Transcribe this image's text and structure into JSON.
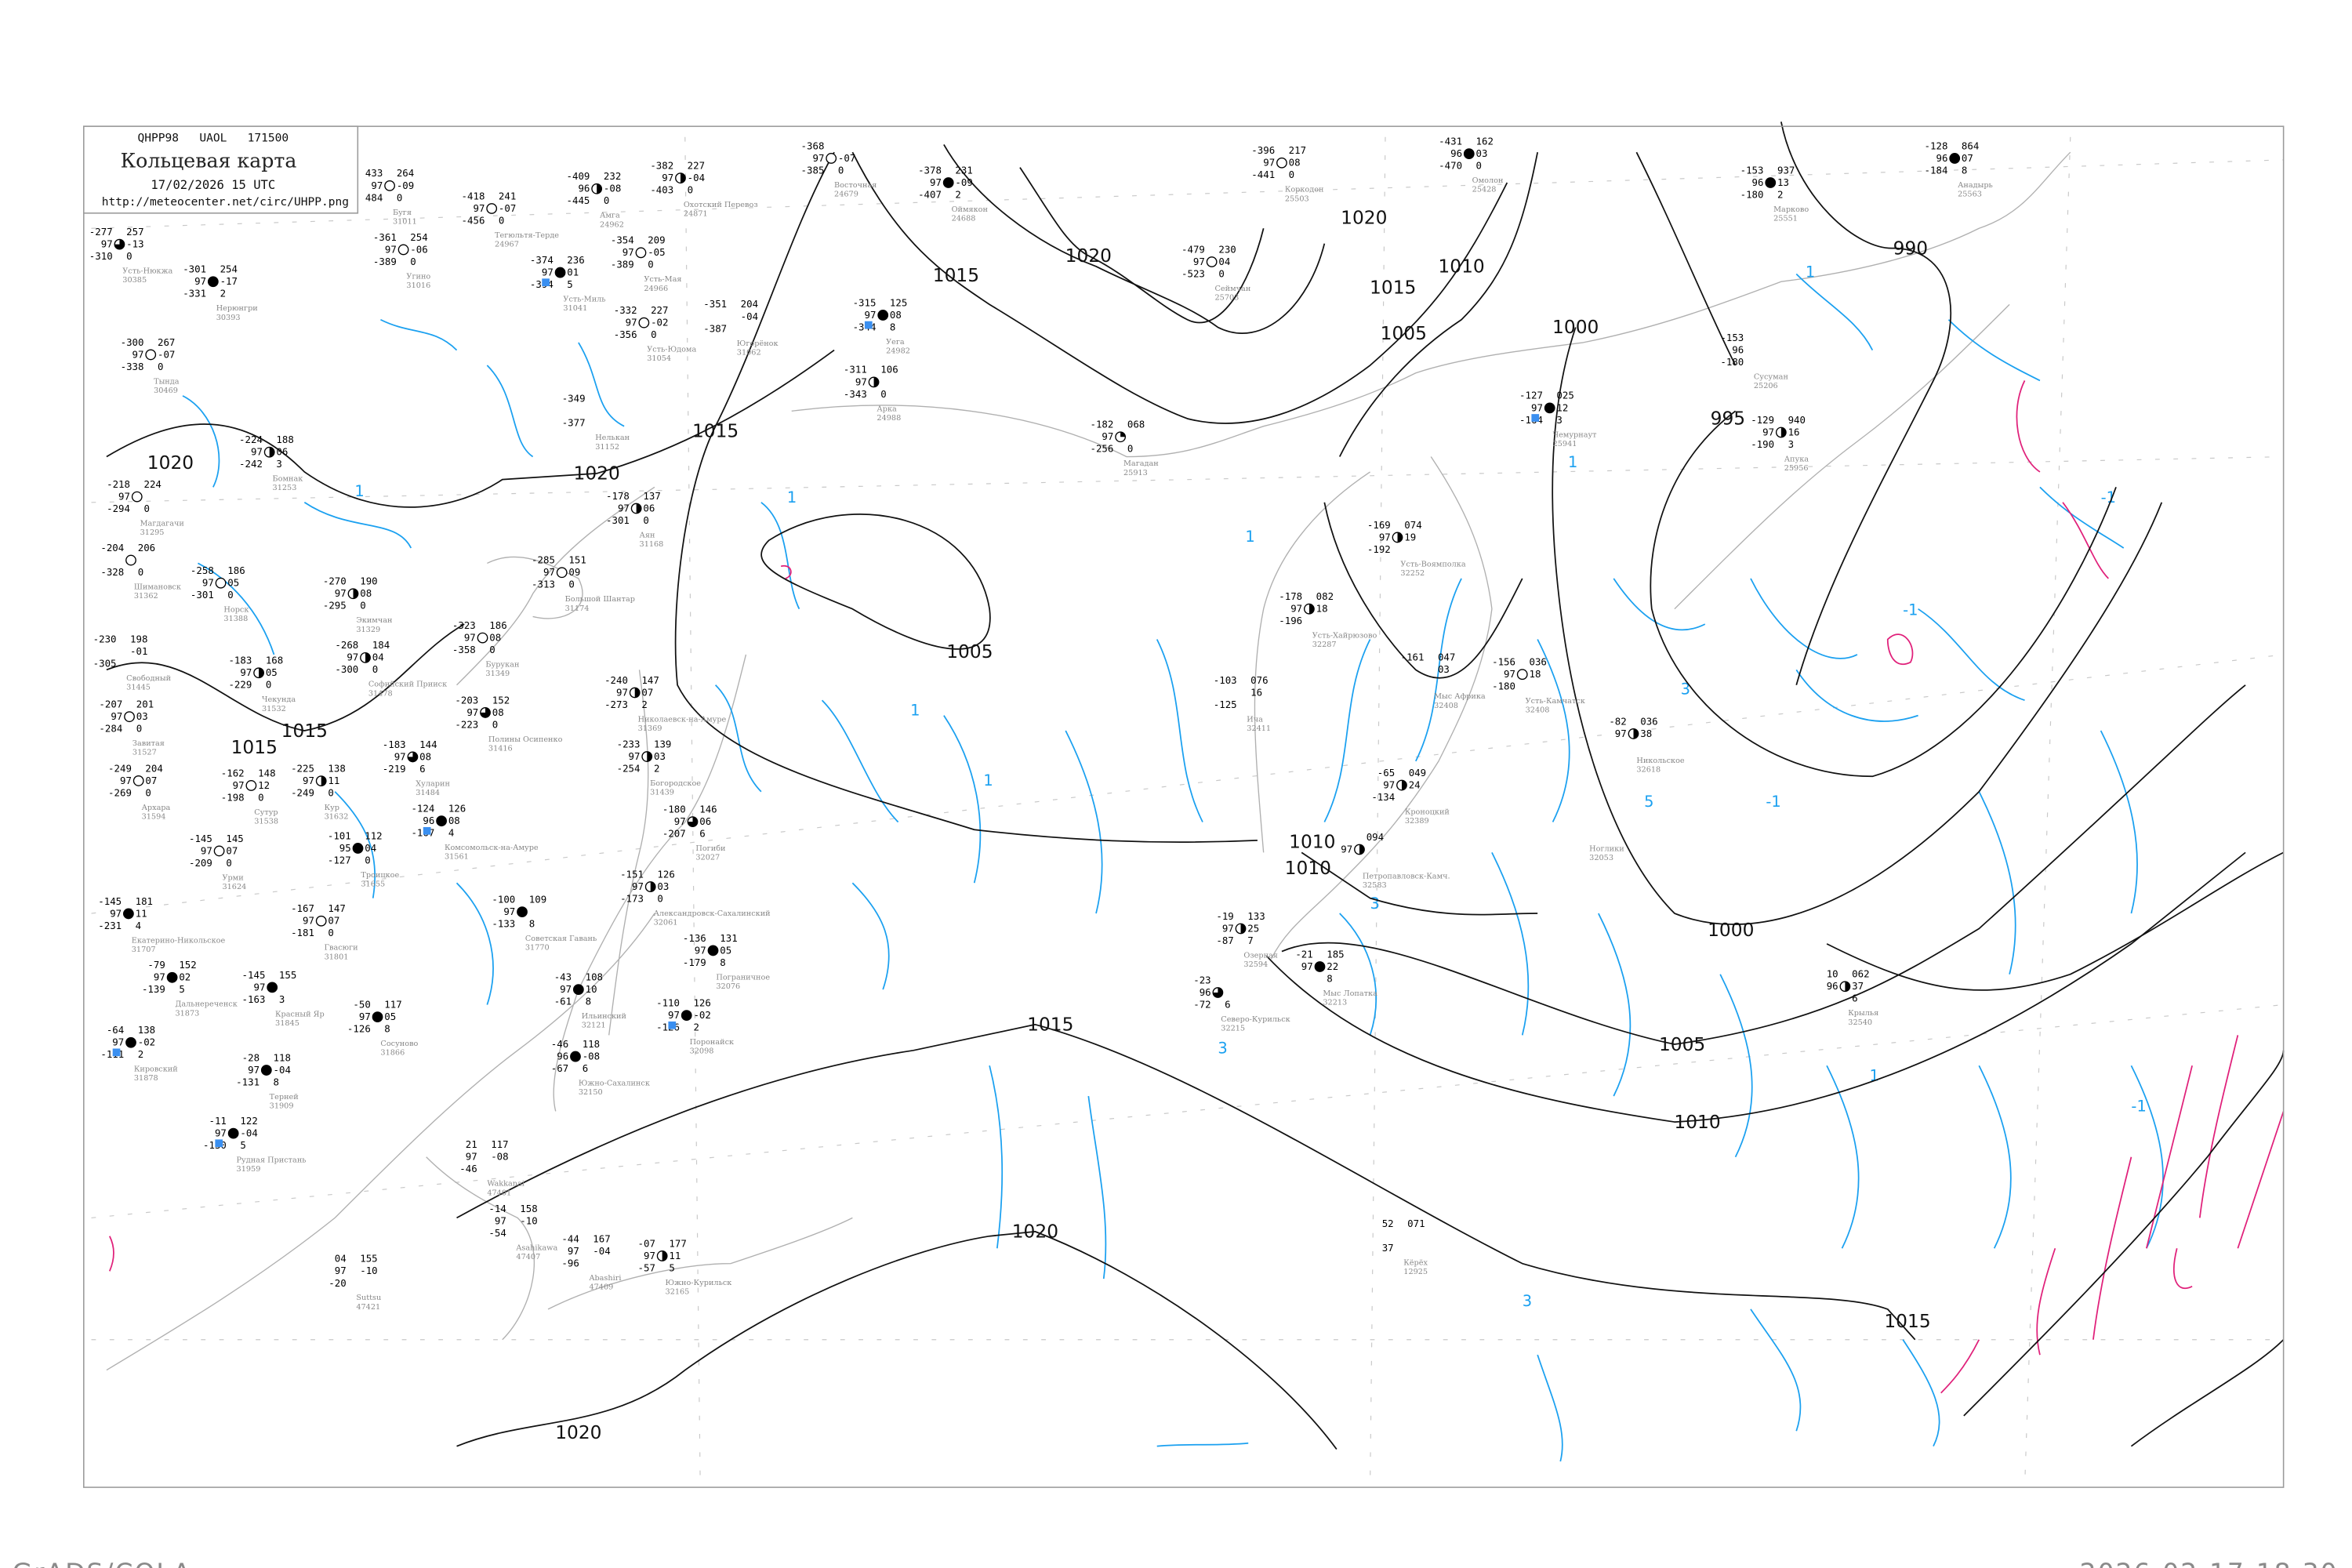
{
  "header": {
    "code": "QHPP98   UAOL   171500",
    "title": "Кольцевая карта",
    "datetime": "17/02/2026 15 UTC",
    "url": "http://meteocenter.net/circ/UHPP.png"
  },
  "footer": {
    "left": "GrADS/COLA",
    "right": "2026-02-17-18:30"
  },
  "colors": {
    "isobar": "#111111",
    "positive_tendency": "#1aa0f0",
    "negative_tendency": "#e0207a",
    "coastline": "#b0b0b0",
    "precip_marker": "#3a8ff0",
    "fog_marker": "#f5f08a"
  },
  "isobar_labels": [
    "1020",
    "1015",
    "1015",
    "1010",
    "1005",
    "1020",
    "1000",
    "995",
    "990",
    "1020",
    "1015",
    "1015",
    "1015",
    "1005",
    "1010",
    "1010",
    "1015",
    "1020",
    "1000",
    "1005",
    "1010",
    "1015",
    "1020",
    "1020"
  ],
  "tendency_labels": [
    "1",
    "1",
    "1",
    "1",
    "1",
    "-1",
    "-1",
    "-1",
    "3",
    "3",
    "3",
    "5",
    "3",
    "1",
    "1",
    "-1",
    "1"
  ],
  "stations": [
    {
      "name": "Усть-Нюкжа",
      "id": "30385",
      "left": [
        "-277",
        "97",
        "-310"
      ],
      "right": [
        "257",
        "-13",
        "0"
      ],
      "cover": 0.75
    },
    {
      "name": "Нерюнгри",
      "id": "30393",
      "left": [
        "-301",
        "97",
        "-331"
      ],
      "right": [
        "254",
        "-17",
        "2"
      ],
      "cover": 1
    },
    {
      "name": "Тында",
      "id": "30469",
      "left": [
        "-300",
        "97",
        "-338"
      ],
      "right": [
        "267",
        "-07",
        "0"
      ],
      "cover": 0
    },
    {
      "name": "Бугя",
      "id": "31011",
      "left": [
        "433",
        "97",
        "484"
      ],
      "right": [
        "264",
        "-09",
        "0"
      ],
      "cover": 0
    },
    {
      "name": "Тегюльтя-Терде",
      "id": "24967",
      "left": [
        "-418",
        "97",
        "-456"
      ],
      "right": [
        "241",
        "-07",
        "0"
      ],
      "cover": 0
    },
    {
      "name": "Амга",
      "id": "24962",
      "left": [
        "-409",
        "96",
        "-445"
      ],
      "right": [
        "232",
        "-08",
        "0"
      ],
      "cover": 0.5
    },
    {
      "name": "Охотский Перевоз",
      "id": "24871",
      "left": [
        "-382",
        "97",
        "-403"
      ],
      "right": [
        "227",
        "-04",
        "0"
      ],
      "cover": 0.5
    },
    {
      "name": "Восточная",
      "id": "24679",
      "left": [
        "-368",
        "97",
        "-385"
      ],
      "right": [
        "",
        "-07",
        "0"
      ],
      "cover": 0
    },
    {
      "name": "Угино",
      "id": "31016",
      "left": [
        "-361",
        "97",
        "-389"
      ],
      "right": [
        "254",
        "-06",
        "0"
      ],
      "cover": 0
    },
    {
      "name": "Усть-Миль",
      "id": "31041",
      "left": [
        "-374",
        "97",
        "-394"
      ],
      "right": [
        "236",
        "01",
        "5"
      ],
      "cover": 1
    },
    {
      "name": "Усть-Мая",
      "id": "24966",
      "left": [
        "-354",
        "97",
        "-389"
      ],
      "right": [
        "209",
        "-05",
        "0"
      ],
      "cover": 0
    },
    {
      "name": "Усть-Юдома",
      "id": "31054",
      "left": [
        "-332",
        "97",
        "-356"
      ],
      "right": [
        "227",
        "-02",
        "0"
      ],
      "cover": 0
    },
    {
      "name": "Югорёнок",
      "id": "31062",
      "left": [
        "-351",
        "",
        "-387"
      ],
      "right": [
        "204",
        "-04",
        ""
      ],
      "cover": -1
    },
    {
      "name": "Нелькан",
      "id": "31152",
      "left": [
        "-349",
        "",
        "-377"
      ],
      "right": [
        "",
        "",
        ""
      ],
      "cover": -1
    },
    {
      "name": "Бомнак",
      "id": "31253",
      "left": [
        "-224",
        "97",
        "-242"
      ],
      "right": [
        "188",
        "06",
        "3"
      ],
      "cover": 0.5
    },
    {
      "name": "Магдагачи",
      "id": "31295",
      "left": [
        "-218",
        "97",
        "-294"
      ],
      "right": [
        "224",
        "",
        "0"
      ],
      "cover": 0
    },
    {
      "name": "Аян",
      "id": "31168",
      "left": [
        "-178",
        "97",
        "-301"
      ],
      "right": [
        "137",
        "06",
        "0"
      ],
      "cover": 0.5
    },
    {
      "name": "Оймякон",
      "id": "24688",
      "left": [
        "-378",
        "97",
        "-407"
      ],
      "right": [
        "231",
        "-09",
        "2"
      ],
      "cover": 1
    },
    {
      "name": "Коркодон",
      "id": "25503",
      "left": [
        "-396",
        "97",
        "-441"
      ],
      "right": [
        "217",
        "08",
        "0"
      ],
      "cover": 0
    },
    {
      "name": "Омолон",
      "id": "25428",
      "left": [
        "-431",
        "96",
        "-470"
      ],
      "right": [
        "162",
        "03",
        "0"
      ],
      "cover": 1
    },
    {
      "name": "Сеймчан",
      "id": "25703",
      "left": [
        "-479",
        "97",
        "-523"
      ],
      "right": [
        "230",
        "04",
        "0"
      ],
      "cover": 0
    },
    {
      "name": "Уега",
      "id": "24982",
      "left": [
        "-315",
        "97",
        "-344"
      ],
      "right": [
        "125",
        "08",
        "8"
      ],
      "cover": 1
    },
    {
      "name": "Арка",
      "id": "24988",
      "left": [
        "-311",
        "97",
        "-343"
      ],
      "right": [
        "106",
        "",
        "0"
      ],
      "cover": 0.5
    },
    {
      "name": "Магадан",
      "id": "25913",
      "left": [
        "-182",
        "97",
        "-256"
      ],
      "right": [
        "068",
        "",
        "0"
      ],
      "cover": 0.25
    },
    {
      "name": "Чемурнаут",
      "id": "25941",
      "left": [
        "-127",
        "97",
        "-164"
      ],
      "right": [
        "025",
        "12",
        "3"
      ],
      "cover": 1
    },
    {
      "name": "Марково",
      "id": "25551",
      "left": [
        "-153",
        "96",
        "-180"
      ],
      "right": [
        "937",
        "13",
        "2"
      ],
      "cover": 1
    },
    {
      "name": "Анадырь",
      "id": "25563",
      "left": [
        "-128",
        "96",
        "-184"
      ],
      "right": [
        "864",
        "07",
        "8"
      ],
      "cover": 1
    },
    {
      "name": "Апука",
      "id": "25956",
      "left": [
        "-129",
        "97",
        "-190"
      ],
      "right": [
        "940",
        "16",
        "3"
      ],
      "cover": 0.5
    },
    {
      "name": "Усть-Воямполка",
      "id": "32252",
      "left": [
        "-169",
        "97",
        "-192"
      ],
      "right": [
        "074",
        "19",
        ""
      ],
      "cover": 0.5
    },
    {
      "name": "Усть-Хайрюзово",
      "id": "32287",
      "left": [
        "-178",
        "97",
        "-196"
      ],
      "right": [
        "082",
        "18",
        ""
      ],
      "cover": 0.5
    },
    {
      "name": "Усть-Камчатск",
      "id": "32408",
      "left": [
        "-156",
        "97",
        "-180"
      ],
      "right": [
        "036",
        "18",
        ""
      ],
      "cover": 0
    },
    {
      "name": "Никольское",
      "id": "32618",
      "left": [
        "-82",
        "97",
        ""
      ],
      "right": [
        "036",
        "38",
        ""
      ],
      "cover": 0.5
    },
    {
      "name": "Ича",
      "id": "32411",
      "left": [
        "-103",
        "",
        "-125"
      ],
      "right": [
        "076",
        "16",
        ""
      ],
      "cover": -1
    },
    {
      "name": "Озерная",
      "id": "32594",
      "left": [
        "-19",
        "97",
        "-87"
      ],
      "right": [
        "133",
        "25",
        "7"
      ],
      "cover": 0.5
    },
    {
      "name": "Северо-Курильск",
      "id": "32215",
      "left": [
        "-23",
        "96",
        "-72"
      ],
      "right": [
        "",
        "",
        "6"
      ],
      "cover": 0.75
    },
    {
      "name": "Мыс Лопатка",
      "id": "32213",
      "left": [
        "-21",
        "97",
        ""
      ],
      "right": [
        "185",
        "22",
        "8"
      ],
      "cover": 1
    },
    {
      "name": "Шимановск",
      "id": "31362",
      "left": [
        "-204",
        "",
        "-328"
      ],
      "right": [
        "206",
        "",
        "0"
      ],
      "cover": 0
    },
    {
      "name": "Норск",
      "id": "31388",
      "left": [
        "-258",
        "97",
        "-301"
      ],
      "right": [
        "186",
        "05",
        "0"
      ],
      "cover": 0
    },
    {
      "name": "Экимчан",
      "id": "31329",
      "left": [
        "-270",
        "97",
        "-295"
      ],
      "right": [
        "190",
        "08",
        "0"
      ],
      "cover": 0.5
    },
    {
      "name": "Свободный",
      "id": "31445",
      "left": [
        "-230",
        "",
        "-305"
      ],
      "right": [
        "198",
        "-01",
        ""
      ],
      "cover": -1
    },
    {
      "name": "Завитая",
      "id": "31527",
      "left": [
        "-207",
        "97",
        "-284"
      ],
      "right": [
        "201",
        "03",
        "0"
      ],
      "cover": 0
    },
    {
      "name": "Архара",
      "id": "31594",
      "left": [
        "-249",
        "97",
        "-269"
      ],
      "right": [
        "204",
        "07",
        "0"
      ],
      "cover": 0
    },
    {
      "name": "Софийский Прииск",
      "id": "31478",
      "left": [
        "-268",
        "97",
        "-300"
      ],
      "right": [
        "184",
        "04",
        "0"
      ],
      "cover": 0.5
    },
    {
      "name": "Бурукан",
      "id": "31349",
      "left": [
        "-323",
        "97",
        "-358"
      ],
      "right": [
        "186",
        "08",
        "0"
      ],
      "cover": 0
    },
    {
      "name": "Полины Осипенко",
      "id": "31416",
      "left": [
        "-203",
        "97",
        "-223"
      ],
      "right": [
        "152",
        "08",
        "0"
      ],
      "cover": 0.75
    },
    {
      "name": "Большой Шантар",
      "id": "31174",
      "left": [
        "-285",
        "97",
        "-313"
      ],
      "right": [
        "151",
        "09",
        "0"
      ],
      "cover": 0
    },
    {
      "name": "Николаевск-на-Амуре",
      "id": "31369",
      "left": [
        "-240",
        "97",
        "-273"
      ],
      "right": [
        "147",
        "07",
        "2"
      ],
      "cover": 0.5
    },
    {
      "name": "Хуларин",
      "id": "31484",
      "left": [
        "-183",
        "97",
        "-219"
      ],
      "right": [
        "144",
        "08",
        "6"
      ],
      "cover": 0.75
    },
    {
      "name": "Комсомольск-на-Амуре",
      "id": "31561",
      "left": [
        "-124",
        "96",
        "-167"
      ],
      "right": [
        "126",
        "08",
        "4"
      ],
      "cover": 1
    },
    {
      "name": "Кур",
      "id": "31632",
      "left": [
        "-225",
        "97",
        "-249"
      ],
      "right": [
        "138",
        "11",
        "0"
      ],
      "cover": 0.5
    },
    {
      "name": "Сутур",
      "id": "31538",
      "left": [
        "-162",
        "97",
        "-198"
      ],
      "right": [
        "148",
        "12",
        "0"
      ],
      "cover": 0
    },
    {
      "name": "Урми",
      "id": "31624",
      "left": [
        "-145",
        "97",
        "-209"
      ],
      "right": [
        "145",
        "07",
        "0"
      ],
      "cover": 0
    },
    {
      "name": "Екатерино-Никольское",
      "id": "31707",
      "left": [
        "-145",
        "97",
        "-231"
      ],
      "right": [
        "181",
        "11",
        "4"
      ],
      "cover": 1
    },
    {
      "name": "Троицкое",
      "id": "31655",
      "left": [
        "-101",
        "95",
        "-127"
      ],
      "right": [
        "112",
        "04",
        "0"
      ],
      "cover": 1
    },
    {
      "name": "Чекунда",
      "id": "31532",
      "left": [
        "-183",
        "97",
        "-229"
      ],
      "right": [
        "168",
        "05",
        "0"
      ],
      "cover": 0.5
    },
    {
      "name": "Богородское",
      "id": "31439",
      "left": [
        "-233",
        "97",
        "-254"
      ],
      "right": [
        "139",
        "03",
        "2"
      ],
      "cover": 0.5
    },
    {
      "name": "Погиби",
      "id": "32027",
      "left": [
        "-180",
        "97",
        "-207"
      ],
      "right": [
        "146",
        "06",
        "6"
      ],
      "cover": 0.75
    },
    {
      "name": "Александровск-Сахалинский",
      "id": "32061",
      "left": [
        "-151",
        "97",
        "-173"
      ],
      "right": [
        "126",
        "03",
        "0"
      ],
      "cover": 0.5
    },
    {
      "name": "Пограничное",
      "id": "32076",
      "left": [
        "-136",
        "97",
        "-179"
      ],
      "right": [
        "131",
        "05",
        "8"
      ],
      "cover": 1
    },
    {
      "name": "Советская Гавань",
      "id": "31770",
      "left": [
        "-100",
        "97",
        "-133"
      ],
      "right": [
        "109",
        "",
        "8"
      ],
      "cover": 1
    },
    {
      "name": "Гвасюги",
      "id": "31801",
      "left": [
        "-167",
        "97",
        "-181"
      ],
      "right": [
        "147",
        "07",
        "0"
      ],
      "cover": 0
    },
    {
      "name": "Дальнереченск",
      "id": "31873",
      "left": [
        "-79",
        "97",
        "-139"
      ],
      "right": [
        "152",
        "02",
        "5"
      ],
      "cover": 1
    },
    {
      "name": "Красный Яр",
      "id": "31845",
      "left": [
        "-145",
        "97",
        "-163"
      ],
      "right": [
        "155",
        "",
        "3"
      ],
      "cover": 1
    },
    {
      "name": "Кировский",
      "id": "31878",
      "left": [
        "-64",
        "97",
        "-111"
      ],
      "right": [
        "138",
        "-02",
        "2"
      ],
      "cover": 1
    },
    {
      "name": "Сосуново",
      "id": "31866",
      "left": [
        "-50",
        "97",
        "-126"
      ],
      "right": [
        "117",
        "05",
        "8"
      ],
      "cover": 1
    },
    {
      "name": "Терней",
      "id": "31909",
      "left": [
        "-28",
        "97",
        "-131"
      ],
      "right": [
        "118",
        "-04",
        "8"
      ],
      "cover": 1
    },
    {
      "name": "Рудная Пристань",
      "id": "31959",
      "left": [
        "-11",
        "97",
        "-130"
      ],
      "right": [
        "122",
        "-04",
        "5"
      ],
      "cover": 1
    },
    {
      "name": "Ильинский",
      "id": "32121",
      "left": [
        "-43",
        "97",
        "-61"
      ],
      "right": [
        "108",
        "10",
        "8"
      ],
      "cover": 1
    },
    {
      "name": "Южно-Сахалинск",
      "id": "32150",
      "left": [
        "-46",
        "96",
        "-67"
      ],
      "right": [
        "118",
        "-08",
        "6"
      ],
      "cover": 1
    },
    {
      "name": "Поронайск",
      "id": "32098",
      "left": [
        "-110",
        "97",
        "-126"
      ],
      "right": [
        "126",
        "-02",
        "2"
      ],
      "cover": 1
    },
    {
      "name": "Wakkanai",
      "id": "47401",
      "left": [
        "21",
        "97",
        "-46"
      ],
      "right": [
        "117",
        "-08",
        ""
      ],
      "cover": -1
    },
    {
      "name": "Asahikawa",
      "id": "47407",
      "left": [
        "-14",
        "97",
        "-54"
      ],
      "right": [
        "158",
        "-10",
        ""
      ],
      "cover": -1
    },
    {
      "name": "Abashiri",
      "id": "47409",
      "left": [
        "-44",
        "97",
        "-96"
      ],
      "right": [
        "167",
        "-04",
        ""
      ],
      "cover": -1
    },
    {
      "name": "Suttsu",
      "id": "47421",
      "left": [
        "04",
        "97",
        "-20"
      ],
      "right": [
        "155",
        "-10",
        ""
      ],
      "cover": -1
    },
    {
      "name": "Южно-Курильск",
      "id": "32165",
      "left": [
        "-07",
        "97",
        "-57"
      ],
      "right": [
        "177",
        "11",
        "5"
      ],
      "cover": 0.5
    },
    {
      "name": "Сусуман",
      "id": "25206",
      "left": [
        "-153",
        "96",
        "-180"
      ],
      "right": [
        "",
        "",
        ""
      ],
      "cover": -2
    },
    {
      "name": "Петропавловск-Камч.",
      "id": "32583",
      "left": [
        "",
        "97",
        ""
      ],
      "right": [
        "094",
        "",
        ""
      ],
      "cover": 0.5
    },
    {
      "name": "Кроноцкий",
      "id": "32389",
      "left": [
        "-65",
        "97",
        "-134"
      ],
      "right": [
        "049",
        "24",
        ""
      ],
      "cover": 0.5
    },
    {
      "name": "Мыс Африка",
      "id": "32408",
      "left": [
        "-161",
        "",
        ""
      ],
      "right": [
        "047",
        "03",
        ""
      ],
      "cover": -1
    },
    {
      "name": "Ноглики",
      "id": "32053",
      "left": [
        "",
        "",
        ""
      ],
      "right": [
        "",
        "",
        ""
      ],
      "cover": -2
    },
    {
      "name": "Кёрёх",
      "id": "12925",
      "left": [
        "52",
        "",
        "37"
      ],
      "right": [
        "071",
        "",
        ""
      ],
      "cover": -1
    },
    {
      "name": "Крылья",
      "id": "32540",
      "left": [
        "10",
        "96",
        ""
      ],
      "right": [
        "062",
        "37",
        "6"
      ],
      "cover": 0.5
    }
  ]
}
